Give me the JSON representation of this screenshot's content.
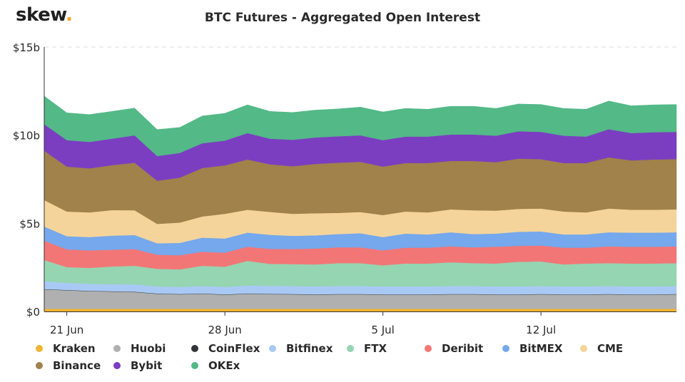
{
  "brand": {
    "name": "skew",
    "dot": "."
  },
  "chart_data": {
    "type": "area",
    "stacked": true,
    "title": "BTC Futures - Aggregated Open Interest",
    "xlabel": "",
    "ylabel": "",
    "ylim": [
      0,
      15
    ],
    "y_ticks": [
      {
        "value": 0,
        "label": "$0"
      },
      {
        "value": 5,
        "label": "$5b"
      },
      {
        "value": 10,
        "label": "$10b"
      },
      {
        "value": 15,
        "label": "$15b"
      }
    ],
    "x_start": "2020-06-20",
    "x_end": "2020-07-18",
    "x_ticks": [
      {
        "date": "2020-06-21",
        "label": "21 Jun"
      },
      {
        "date": "2020-06-28",
        "label": "28 Jun"
      },
      {
        "date": "2020-07-05",
        "label": "5 Jul"
      },
      {
        "date": "2020-07-12",
        "label": "12 Jul"
      }
    ],
    "grid": "horizontal dashed",
    "legend_position": "bottom",
    "x": [
      "2020-06-20",
      "2020-06-21",
      "2020-06-22",
      "2020-06-23",
      "2020-06-24",
      "2020-06-25",
      "2020-06-26",
      "2020-06-27",
      "2020-06-28",
      "2020-06-29",
      "2020-06-30",
      "2020-07-01",
      "2020-07-02",
      "2020-07-03",
      "2020-07-04",
      "2020-07-05",
      "2020-07-06",
      "2020-07-07",
      "2020-07-08",
      "2020-07-09",
      "2020-07-10",
      "2020-07-11",
      "2020-07-12",
      "2020-07-13",
      "2020-07-14",
      "2020-07-15",
      "2020-07-16",
      "2020-07-17",
      "2020-07-18"
    ],
    "series": [
      {
        "name": "Kraken",
        "color": "#f0b433",
        "values": [
          0.15,
          0.15,
          0.15,
          0.15,
          0.15,
          0.15,
          0.15,
          0.15,
          0.15,
          0.15,
          0.15,
          0.15,
          0.15,
          0.15,
          0.15,
          0.15,
          0.15,
          0.15,
          0.15,
          0.15,
          0.15,
          0.15,
          0.15,
          0.15,
          0.15,
          0.15,
          0.15,
          0.15,
          0.15
        ]
      },
      {
        "name": "Huobi",
        "color": "#b0b0b0",
        "values": [
          1.1,
          1.05,
          1.0,
          0.98,
          0.95,
          0.85,
          0.82,
          0.85,
          0.8,
          0.85,
          0.83,
          0.82,
          0.8,
          0.82,
          0.82,
          0.8,
          0.8,
          0.8,
          0.82,
          0.82,
          0.8,
          0.8,
          0.82,
          0.8,
          0.8,
          0.82,
          0.8,
          0.8,
          0.82
        ]
      },
      {
        "name": "CoinFlex",
        "color": "#2f3538",
        "values": [
          0.02,
          0.02,
          0.02,
          0.02,
          0.02,
          0.02,
          0.02,
          0.02,
          0.02,
          0.02,
          0.02,
          0.02,
          0.02,
          0.02,
          0.02,
          0.02,
          0.02,
          0.02,
          0.02,
          0.02,
          0.02,
          0.02,
          0.02,
          0.02,
          0.02,
          0.02,
          0.02,
          0.02,
          0.02
        ]
      },
      {
        "name": "Bitfinex",
        "color": "#a9c9f5",
        "values": [
          0.45,
          0.4,
          0.4,
          0.4,
          0.42,
          0.4,
          0.4,
          0.42,
          0.42,
          0.45,
          0.45,
          0.45,
          0.45,
          0.45,
          0.45,
          0.45,
          0.45,
          0.45,
          0.45,
          0.45,
          0.45,
          0.45,
          0.45,
          0.45,
          0.45,
          0.45,
          0.45,
          0.45,
          0.45
        ]
      },
      {
        "name": "FTX",
        "color": "#95d5b2",
        "values": [
          1.2,
          0.9,
          0.9,
          1.0,
          1.05,
          1.0,
          1.0,
          1.15,
          1.15,
          1.4,
          1.25,
          1.25,
          1.25,
          1.3,
          1.3,
          1.2,
          1.3,
          1.3,
          1.35,
          1.3,
          1.3,
          1.4,
          1.4,
          1.25,
          1.3,
          1.3,
          1.3,
          1.3,
          1.3
        ]
      },
      {
        "name": "Deribit",
        "color": "#f37676",
        "values": [
          1.1,
          1.0,
          1.0,
          0.95,
          0.95,
          0.8,
          0.8,
          0.8,
          0.8,
          0.8,
          0.85,
          0.85,
          0.9,
          0.9,
          0.9,
          0.85,
          0.9,
          0.9,
          0.9,
          0.9,
          0.95,
          0.9,
          0.9,
          0.95,
          0.9,
          0.95,
          0.95,
          0.95,
          0.95
        ]
      },
      {
        "name": "BitMEX",
        "color": "#75a8ec",
        "values": [
          0.8,
          0.75,
          0.75,
          0.8,
          0.8,
          0.65,
          0.7,
          0.8,
          0.8,
          0.8,
          0.8,
          0.75,
          0.75,
          0.75,
          0.8,
          0.75,
          0.8,
          0.75,
          0.8,
          0.75,
          0.75,
          0.8,
          0.8,
          0.75,
          0.75,
          0.8,
          0.8,
          0.8,
          0.8
        ]
      },
      {
        "name": "CME",
        "color": "#f5d49b",
        "values": [
          1.5,
          1.4,
          1.4,
          1.45,
          1.4,
          1.1,
          1.15,
          1.2,
          1.4,
          1.3,
          1.3,
          1.25,
          1.25,
          1.2,
          1.2,
          1.25,
          1.25,
          1.25,
          1.3,
          1.35,
          1.3,
          1.3,
          1.3,
          1.3,
          1.25,
          1.35,
          1.3,
          1.3,
          1.3
        ]
      },
      {
        "name": "Binance",
        "color": "#a0824a",
        "values": [
          2.8,
          2.55,
          2.5,
          2.55,
          2.7,
          2.45,
          2.55,
          2.75,
          2.75,
          2.85,
          2.7,
          2.7,
          2.8,
          2.85,
          2.85,
          2.75,
          2.75,
          2.8,
          2.75,
          2.8,
          2.75,
          2.85,
          2.8,
          2.75,
          2.8,
          2.9,
          2.8,
          2.85,
          2.85
        ]
      },
      {
        "name": "Bybit",
        "color": "#7b3ec1",
        "values": [
          1.5,
          1.5,
          1.5,
          1.5,
          1.55,
          1.4,
          1.4,
          1.4,
          1.4,
          1.5,
          1.45,
          1.5,
          1.5,
          1.5,
          1.5,
          1.5,
          1.5,
          1.5,
          1.5,
          1.5,
          1.5,
          1.55,
          1.55,
          1.55,
          1.5,
          1.6,
          1.55,
          1.55,
          1.55
        ]
      },
      {
        "name": "OKEx",
        "color": "#52b987",
        "values": [
          1.6,
          1.55,
          1.55,
          1.55,
          1.55,
          1.5,
          1.45,
          1.55,
          1.55,
          1.6,
          1.55,
          1.55,
          1.55,
          1.55,
          1.6,
          1.6,
          1.6,
          1.55,
          1.6,
          1.6,
          1.55,
          1.55,
          1.55,
          1.55,
          1.55,
          1.6,
          1.55,
          1.55,
          1.55
        ]
      }
    ]
  }
}
